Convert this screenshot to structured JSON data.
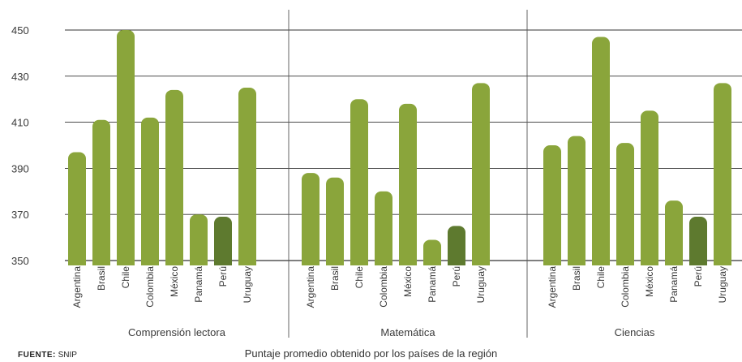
{
  "chart_data": {
    "type": "bar",
    "ylim": [
      350,
      450
    ],
    "yticks": [
      350,
      370,
      390,
      410,
      430,
      450
    ],
    "grid": true,
    "colors": {
      "default": "#8aa53b",
      "highlight": "#5e7a2f"
    },
    "highlight_category": "Perú",
    "groups": [
      {
        "name": "Comprensión lectora",
        "categories": [
          "Argentina",
          "Brasil",
          "Chile",
          "Colombia",
          "México",
          "Panamá",
          "Perú",
          "Uruguay"
        ],
        "values": [
          397,
          411,
          450,
          412,
          424,
          370,
          369,
          425
        ]
      },
      {
        "name": "Matemática",
        "categories": [
          "Argentina",
          "Brasil",
          "Chile",
          "Colombia",
          "México",
          "Panamá",
          "Perú",
          "Uruguay"
        ],
        "values": [
          388,
          386,
          420,
          380,
          418,
          359,
          365,
          427
        ]
      },
      {
        "name": "Ciencias",
        "categories": [
          "Argentina",
          "Brasil",
          "Chile",
          "Colombia",
          "México",
          "Panamá",
          "Perú",
          "Uruguay"
        ],
        "values": [
          400,
          404,
          447,
          401,
          415,
          376,
          369,
          427
        ]
      }
    ]
  },
  "caption": "Puntaje promedio obtenido por los países de la región",
  "source": {
    "label": "FUENTE:",
    "text": "SNIP"
  }
}
